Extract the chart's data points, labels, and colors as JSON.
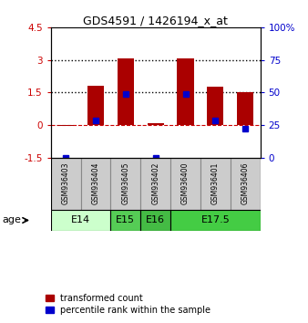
{
  "title": "GDS4591 / 1426194_x_at",
  "samples": [
    "GSM936403",
    "GSM936404",
    "GSM936405",
    "GSM936402",
    "GSM936400",
    "GSM936401",
    "GSM936406"
  ],
  "red_bars": [
    -0.05,
    1.82,
    3.07,
    0.07,
    3.07,
    1.75,
    1.5
  ],
  "blue_dots": [
    -1.5,
    0.22,
    1.42,
    -1.5,
    1.44,
    0.22,
    -0.18
  ],
  "ylim": [
    -1.5,
    4.5
  ],
  "yticks_left": [
    -1.5,
    0,
    1.5,
    3,
    4.5
  ],
  "yticks_right": [
    0,
    25,
    50,
    75,
    100
  ],
  "age_groups": [
    {
      "label": "E14",
      "start": 0,
      "end": 2,
      "color": "#ccffcc"
    },
    {
      "label": "E15",
      "start": 2,
      "end": 3,
      "color": "#55cc55"
    },
    {
      "label": "E16",
      "start": 3,
      "end": 4,
      "color": "#44bb44"
    },
    {
      "label": "E17.5",
      "start": 4,
      "end": 7,
      "color": "#44cc44"
    }
  ],
  "bar_color": "#aa0000",
  "dot_color": "#0000cc",
  "bar_width": 0.55,
  "ylabel_left_color": "#cc0000",
  "ylabel_right_color": "#0000cc",
  "legend_labels": [
    "transformed count",
    "percentile rank within the sample"
  ],
  "age_label": "age",
  "sample_box_color": "#cccccc",
  "sample_box_edge_color": "#888888"
}
